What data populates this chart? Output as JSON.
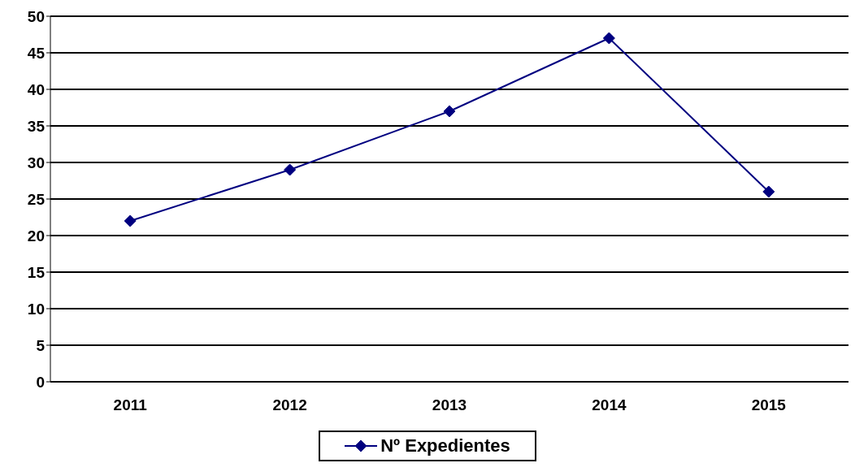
{
  "chart_data": {
    "type": "line",
    "categories": [
      "2011",
      "2012",
      "2013",
      "2014",
      "2015"
    ],
    "series": [
      {
        "name": "Nº Expedientes",
        "color": "#000080",
        "values": [
          22,
          29,
          37,
          47,
          26
        ]
      }
    ],
    "ylim": [
      0,
      50
    ],
    "yticks": [
      0,
      5,
      10,
      15,
      20,
      25,
      30,
      35,
      40,
      45,
      50
    ],
    "grid": "y",
    "legend": "bottom",
    "marker": "diamond",
    "line_style": "solid"
  }
}
